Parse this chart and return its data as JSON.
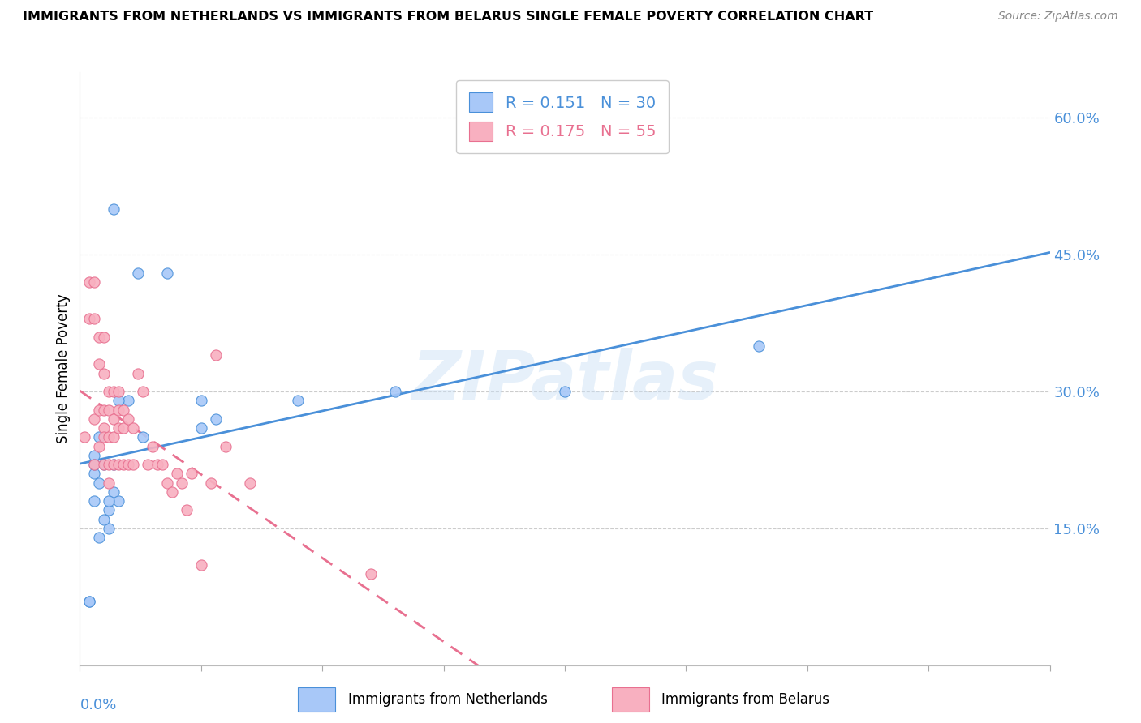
{
  "title": "IMMIGRANTS FROM NETHERLANDS VS IMMIGRANTS FROM BELARUS SINGLE FEMALE POVERTY CORRELATION CHART",
  "source": "Source: ZipAtlas.com",
  "ylabel": "Single Female Poverty",
  "ylabel_right_ticks": [
    "60.0%",
    "45.0%",
    "30.0%",
    "15.0%"
  ],
  "ylabel_right_vals": [
    0.6,
    0.45,
    0.3,
    0.15
  ],
  "xlim": [
    0.0,
    0.2
  ],
  "ylim": [
    0.0,
    0.65
  ],
  "r_netherlands": 0.151,
  "n_netherlands": 30,
  "r_belarus": 0.175,
  "n_belarus": 55,
  "color_netherlands": "#a8c8f8",
  "color_belarus": "#f8b0c0",
  "trendline_netherlands_color": "#4a90d9",
  "trendline_belarus_color": "#e87090",
  "watermark": "ZIPatlas",
  "netherlands_x": [
    0.007,
    0.012,
    0.013,
    0.018,
    0.025,
    0.028,
    0.01,
    0.008,
    0.003,
    0.003,
    0.004,
    0.003,
    0.004,
    0.005,
    0.003,
    0.006,
    0.006,
    0.007,
    0.008,
    0.007,
    0.006,
    0.005,
    0.025,
    0.045,
    0.065,
    0.1,
    0.14,
    0.002,
    0.002,
    0.004
  ],
  "netherlands_y": [
    0.5,
    0.43,
    0.25,
    0.43,
    0.26,
    0.27,
    0.29,
    0.29,
    0.23,
    0.21,
    0.25,
    0.22,
    0.2,
    0.22,
    0.18,
    0.17,
    0.15,
    0.19,
    0.18,
    0.22,
    0.18,
    0.16,
    0.29,
    0.29,
    0.3,
    0.3,
    0.35,
    0.07,
    0.07,
    0.14
  ],
  "belarus_x": [
    0.001,
    0.002,
    0.002,
    0.003,
    0.003,
    0.003,
    0.003,
    0.004,
    0.004,
    0.004,
    0.004,
    0.005,
    0.005,
    0.005,
    0.005,
    0.005,
    0.005,
    0.006,
    0.006,
    0.006,
    0.006,
    0.006,
    0.007,
    0.007,
    0.007,
    0.007,
    0.008,
    0.008,
    0.008,
    0.008,
    0.009,
    0.009,
    0.009,
    0.01,
    0.01,
    0.011,
    0.011,
    0.012,
    0.013,
    0.014,
    0.015,
    0.016,
    0.017,
    0.018,
    0.019,
    0.02,
    0.021,
    0.022,
    0.023,
    0.025,
    0.027,
    0.028,
    0.03,
    0.035,
    0.06
  ],
  "belarus_y": [
    0.25,
    0.42,
    0.38,
    0.42,
    0.38,
    0.27,
    0.22,
    0.36,
    0.33,
    0.28,
    0.24,
    0.36,
    0.32,
    0.28,
    0.26,
    0.25,
    0.22,
    0.3,
    0.28,
    0.25,
    0.22,
    0.2,
    0.3,
    0.27,
    0.25,
    0.22,
    0.3,
    0.28,
    0.26,
    0.22,
    0.28,
    0.26,
    0.22,
    0.27,
    0.22,
    0.26,
    0.22,
    0.32,
    0.3,
    0.22,
    0.24,
    0.22,
    0.22,
    0.2,
    0.19,
    0.21,
    0.2,
    0.17,
    0.21,
    0.11,
    0.2,
    0.34,
    0.24,
    0.2,
    0.1
  ]
}
